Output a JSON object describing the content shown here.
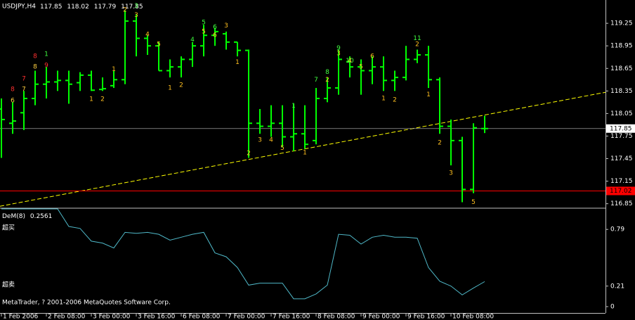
{
  "chart_data": [
    {
      "type": "ohlc",
      "title": "USDJPY,H4",
      "color": "#00ff00",
      "categories": [
        "1 Feb 2006",
        null,
        null,
        null,
        "2 Feb 08:00",
        null,
        null,
        null,
        "3 Feb 00:00",
        null,
        null,
        null,
        "3 Feb 16:00",
        null,
        null,
        null,
        "6 Feb 08:00",
        null,
        null,
        null,
        "7 Feb 00:00",
        null,
        null,
        null,
        "7 Feb 16:00",
        null,
        null,
        null,
        "8 Feb 08:00",
        null,
        null,
        null,
        "9 Feb 00:00",
        null,
        null,
        null,
        "9 Feb 16:00",
        null,
        null,
        null,
        "10 Feb 08:00",
        null,
        null,
        null
      ],
      "open": [
        118.11,
        117.92,
        118.06,
        118.25,
        118.44,
        118.47,
        118.49,
        118.46,
        118.56,
        118.37,
        118.42,
        118.5,
        119.28,
        119.05,
        118.95,
        118.62,
        118.67,
        118.77,
        118.95,
        119.09,
        119.11,
        119.0,
        118.89,
        117.92,
        117.88,
        117.92,
        117.74,
        117.78,
        117.69,
        118.25,
        118.39,
        118.74,
        118.67,
        118.62,
        118.67,
        118.49,
        118.53,
        118.77,
        118.83,
        118.5,
        117.88,
        117.69,
        117.04,
        117.85
      ],
      "high": [
        118.25,
        118.2,
        118.35,
        118.62,
        118.67,
        118.62,
        118.62,
        118.6,
        118.62,
        118.53,
        118.62,
        119.42,
        119.37,
        119.09,
        119.0,
        118.77,
        118.81,
        119.0,
        119.23,
        119.19,
        119.14,
        119.0,
        118.9,
        118.11,
        118.16,
        118.16,
        118.18,
        118.16,
        118.39,
        118.53,
        118.9,
        118.81,
        118.77,
        118.81,
        118.81,
        118.62,
        118.95,
        118.9,
        118.95,
        118.53,
        117.97,
        117.74,
        117.92,
        118.02
      ],
      "low": [
        117.46,
        117.78,
        117.83,
        118.16,
        118.25,
        118.35,
        118.18,
        118.35,
        118.35,
        118.35,
        118.39,
        118.44,
        118.81,
        118.83,
        118.62,
        118.53,
        118.53,
        118.67,
        118.81,
        118.95,
        118.9,
        118.81,
        117.46,
        117.78,
        117.74,
        117.6,
        117.55,
        117.58,
        117.64,
        118.2,
        118.3,
        118.53,
        118.3,
        118.44,
        118.35,
        118.35,
        118.49,
        118.72,
        118.39,
        117.78,
        117.36,
        116.87,
        116.99,
        117.79
      ],
      "close": [
        117.97,
        117.95,
        118.25,
        118.44,
        118.47,
        118.49,
        118.44,
        118.56,
        118.36,
        118.38,
        118.5,
        119.28,
        119.05,
        118.95,
        118.62,
        118.67,
        118.77,
        118.95,
        119.09,
        119.14,
        119.0,
        118.89,
        117.92,
        117.88,
        117.92,
        117.74,
        117.78,
        117.64,
        118.25,
        118.39,
        118.77,
        118.67,
        118.62,
        118.67,
        118.49,
        118.53,
        118.77,
        118.83,
        118.5,
        117.88,
        117.69,
        117.04,
        117.86,
        117.85
      ],
      "ylim": [
        116.8,
        119.56
      ],
      "yticks": [
        116.85,
        117.15,
        117.45,
        117.75,
        118.05,
        118.35,
        118.65,
        118.95,
        119.25
      ],
      "hline": {
        "value": 117.02,
        "color": "#ff0000"
      },
      "close_line_color": "#c0c0c0",
      "trendline": {
        "points": [
          [
            0,
            116.82
          ],
          [
            43,
            118.03
          ]
        ],
        "color": "#ffff00"
      },
      "annotations": [
        {
          "text": "8",
          "bar": 1,
          "price": 118.37,
          "color": "#ff3030"
        },
        {
          "text": "6",
          "bar": 1,
          "price": 118.22,
          "color": "#ffd040"
        },
        {
          "text": "7",
          "bar": 2,
          "price": 118.51,
          "color": "#ff3030"
        },
        {
          "text": "7",
          "bar": 2,
          "price": 118.37,
          "color": "#ffd040"
        },
        {
          "text": "8",
          "bar": 3,
          "price": 118.81,
          "color": "#ff3030"
        },
        {
          "text": "8",
          "bar": 3,
          "price": 118.67,
          "color": "#ffd040"
        },
        {
          "text": "1",
          "bar": 4,
          "price": 118.84,
          "color": "#40ff40"
        },
        {
          "text": "9",
          "bar": 4,
          "price": 118.69,
          "color": "#ff3030"
        },
        {
          "text": "1",
          "bar": 8,
          "price": 118.24,
          "color": "#ffc020"
        },
        {
          "text": "2",
          "bar": 9,
          "price": 118.24,
          "color": "#ffc020"
        },
        {
          "text": "1",
          "bar": 10,
          "price": 118.64,
          "color": "#ffc020"
        },
        {
          "text": "2",
          "bar": 11,
          "price": 119.43,
          "color": "#ffc020"
        },
        {
          "text": "3",
          "bar": 12,
          "price": 119.48,
          "color": "#40ff40"
        },
        {
          "text": "3",
          "bar": 12,
          "price": 119.36,
          "color": "#ffc020"
        },
        {
          "text": "4",
          "bar": 13,
          "price": 119.1,
          "color": "#ffc020"
        },
        {
          "text": "5",
          "bar": 14,
          "price": 118.97,
          "color": "#ffc020"
        },
        {
          "text": "1",
          "bar": 15,
          "price": 118.39,
          "color": "#ffc020"
        },
        {
          "text": "2",
          "bar": 16,
          "price": 118.43,
          "color": "#ffc020"
        },
        {
          "text": "4",
          "bar": 17,
          "price": 119.03,
          "color": "#40ff40"
        },
        {
          "text": "5",
          "bar": 18,
          "price": 119.26,
          "color": "#40ff40"
        },
        {
          "text": "5",
          "bar": 18,
          "price": 119.14,
          "color": "#ffc020"
        },
        {
          "text": "6",
          "bar": 19,
          "price": 119.2,
          "color": "#40ff40"
        },
        {
          "text": "6",
          "bar": 19,
          "price": 119.09,
          "color": "#ffc020"
        },
        {
          "text": "3",
          "bar": 20,
          "price": 119.22,
          "color": "#ffc020"
        },
        {
          "text": "1",
          "bar": 21,
          "price": 118.73,
          "color": "#ffc020"
        },
        {
          "text": "2",
          "bar": 22,
          "price": 117.52,
          "color": "#ffc020"
        },
        {
          "text": "3",
          "bar": 23,
          "price": 117.7,
          "color": "#ffc020"
        },
        {
          "text": "4",
          "bar": 24,
          "price": 117.7,
          "color": "#ffc020"
        },
        {
          "text": "5",
          "bar": 25,
          "price": 117.59,
          "color": "#ffc020"
        },
        {
          "text": "1",
          "bar": 26,
          "price": 118.15,
          "color": "#40ff40"
        },
        {
          "text": "1",
          "bar": 27,
          "price": 117.53,
          "color": "#ffc020"
        },
        {
          "text": "7",
          "bar": 28,
          "price": 118.5,
          "color": "#40ff40"
        },
        {
          "text": "8",
          "bar": 29,
          "price": 118.6,
          "color": "#40ff40"
        },
        {
          "text": "2",
          "bar": 29,
          "price": 118.5,
          "color": "#ffc020"
        },
        {
          "text": "9",
          "bar": 30,
          "price": 118.92,
          "color": "#40ff40"
        },
        {
          "text": "3",
          "bar": 30,
          "price": 118.85,
          "color": "#ffc020"
        },
        {
          "text": "10",
          "bar": 31,
          "price": 118.75,
          "color": "#40ff40"
        },
        {
          "text": "4",
          "bar": 31,
          "price": 118.75,
          "color": "#ffc020"
        },
        {
          "text": "5",
          "bar": 32,
          "price": 118.67,
          "color": "#ffc020"
        },
        {
          "text": "6",
          "bar": 33,
          "price": 118.81,
          "color": "#ffc020"
        },
        {
          "text": "1",
          "bar": 34,
          "price": 118.25,
          "color": "#ffc020"
        },
        {
          "text": "2",
          "bar": 35,
          "price": 118.23,
          "color": "#ffc020"
        },
        {
          "text": "11",
          "bar": 37,
          "price": 119.05,
          "color": "#40ff40"
        },
        {
          "text": "2",
          "bar": 37,
          "price": 118.97,
          "color": "#ffc020"
        },
        {
          "text": "1",
          "bar": 38,
          "price": 118.3,
          "color": "#ffc020"
        },
        {
          "text": "2",
          "bar": 39,
          "price": 117.66,
          "color": "#ffc020"
        },
        {
          "text": "3",
          "bar": 40,
          "price": 117.26,
          "color": "#ffc020"
        },
        {
          "text": "5",
          "bar": 42,
          "price": 116.87,
          "color": "#ffc020"
        }
      ]
    },
    {
      "type": "line",
      "title": "DeM(8)",
      "color": "#4fb8c8",
      "values": [
        1,
        1,
        1,
        1,
        1,
        1,
        0.82,
        0.8,
        0.67,
        0.65,
        0.6,
        0.76,
        0.75,
        0.76,
        0.74,
        0.68,
        0.71,
        0.74,
        0.76,
        0.55,
        0.51,
        0.4,
        0.22,
        0.24,
        0.24,
        0.24,
        0.08,
        0.08,
        0.13,
        0.22,
        0.74,
        0.73,
        0.64,
        0.71,
        0.73,
        0.71,
        0.71,
        0.7,
        0.4,
        0.26,
        0.21,
        0.12,
        0.19,
        0.2561
      ],
      "ylim": [
        -0.065,
        1.0
      ],
      "yticks": [
        0,
        0.21,
        0.79
      ],
      "overbought_label": "超买",
      "oversold_label": "超卖"
    }
  ],
  "footer": "MetaTrader, ? 2001-2006 MetaQuotes Software Corp."
}
